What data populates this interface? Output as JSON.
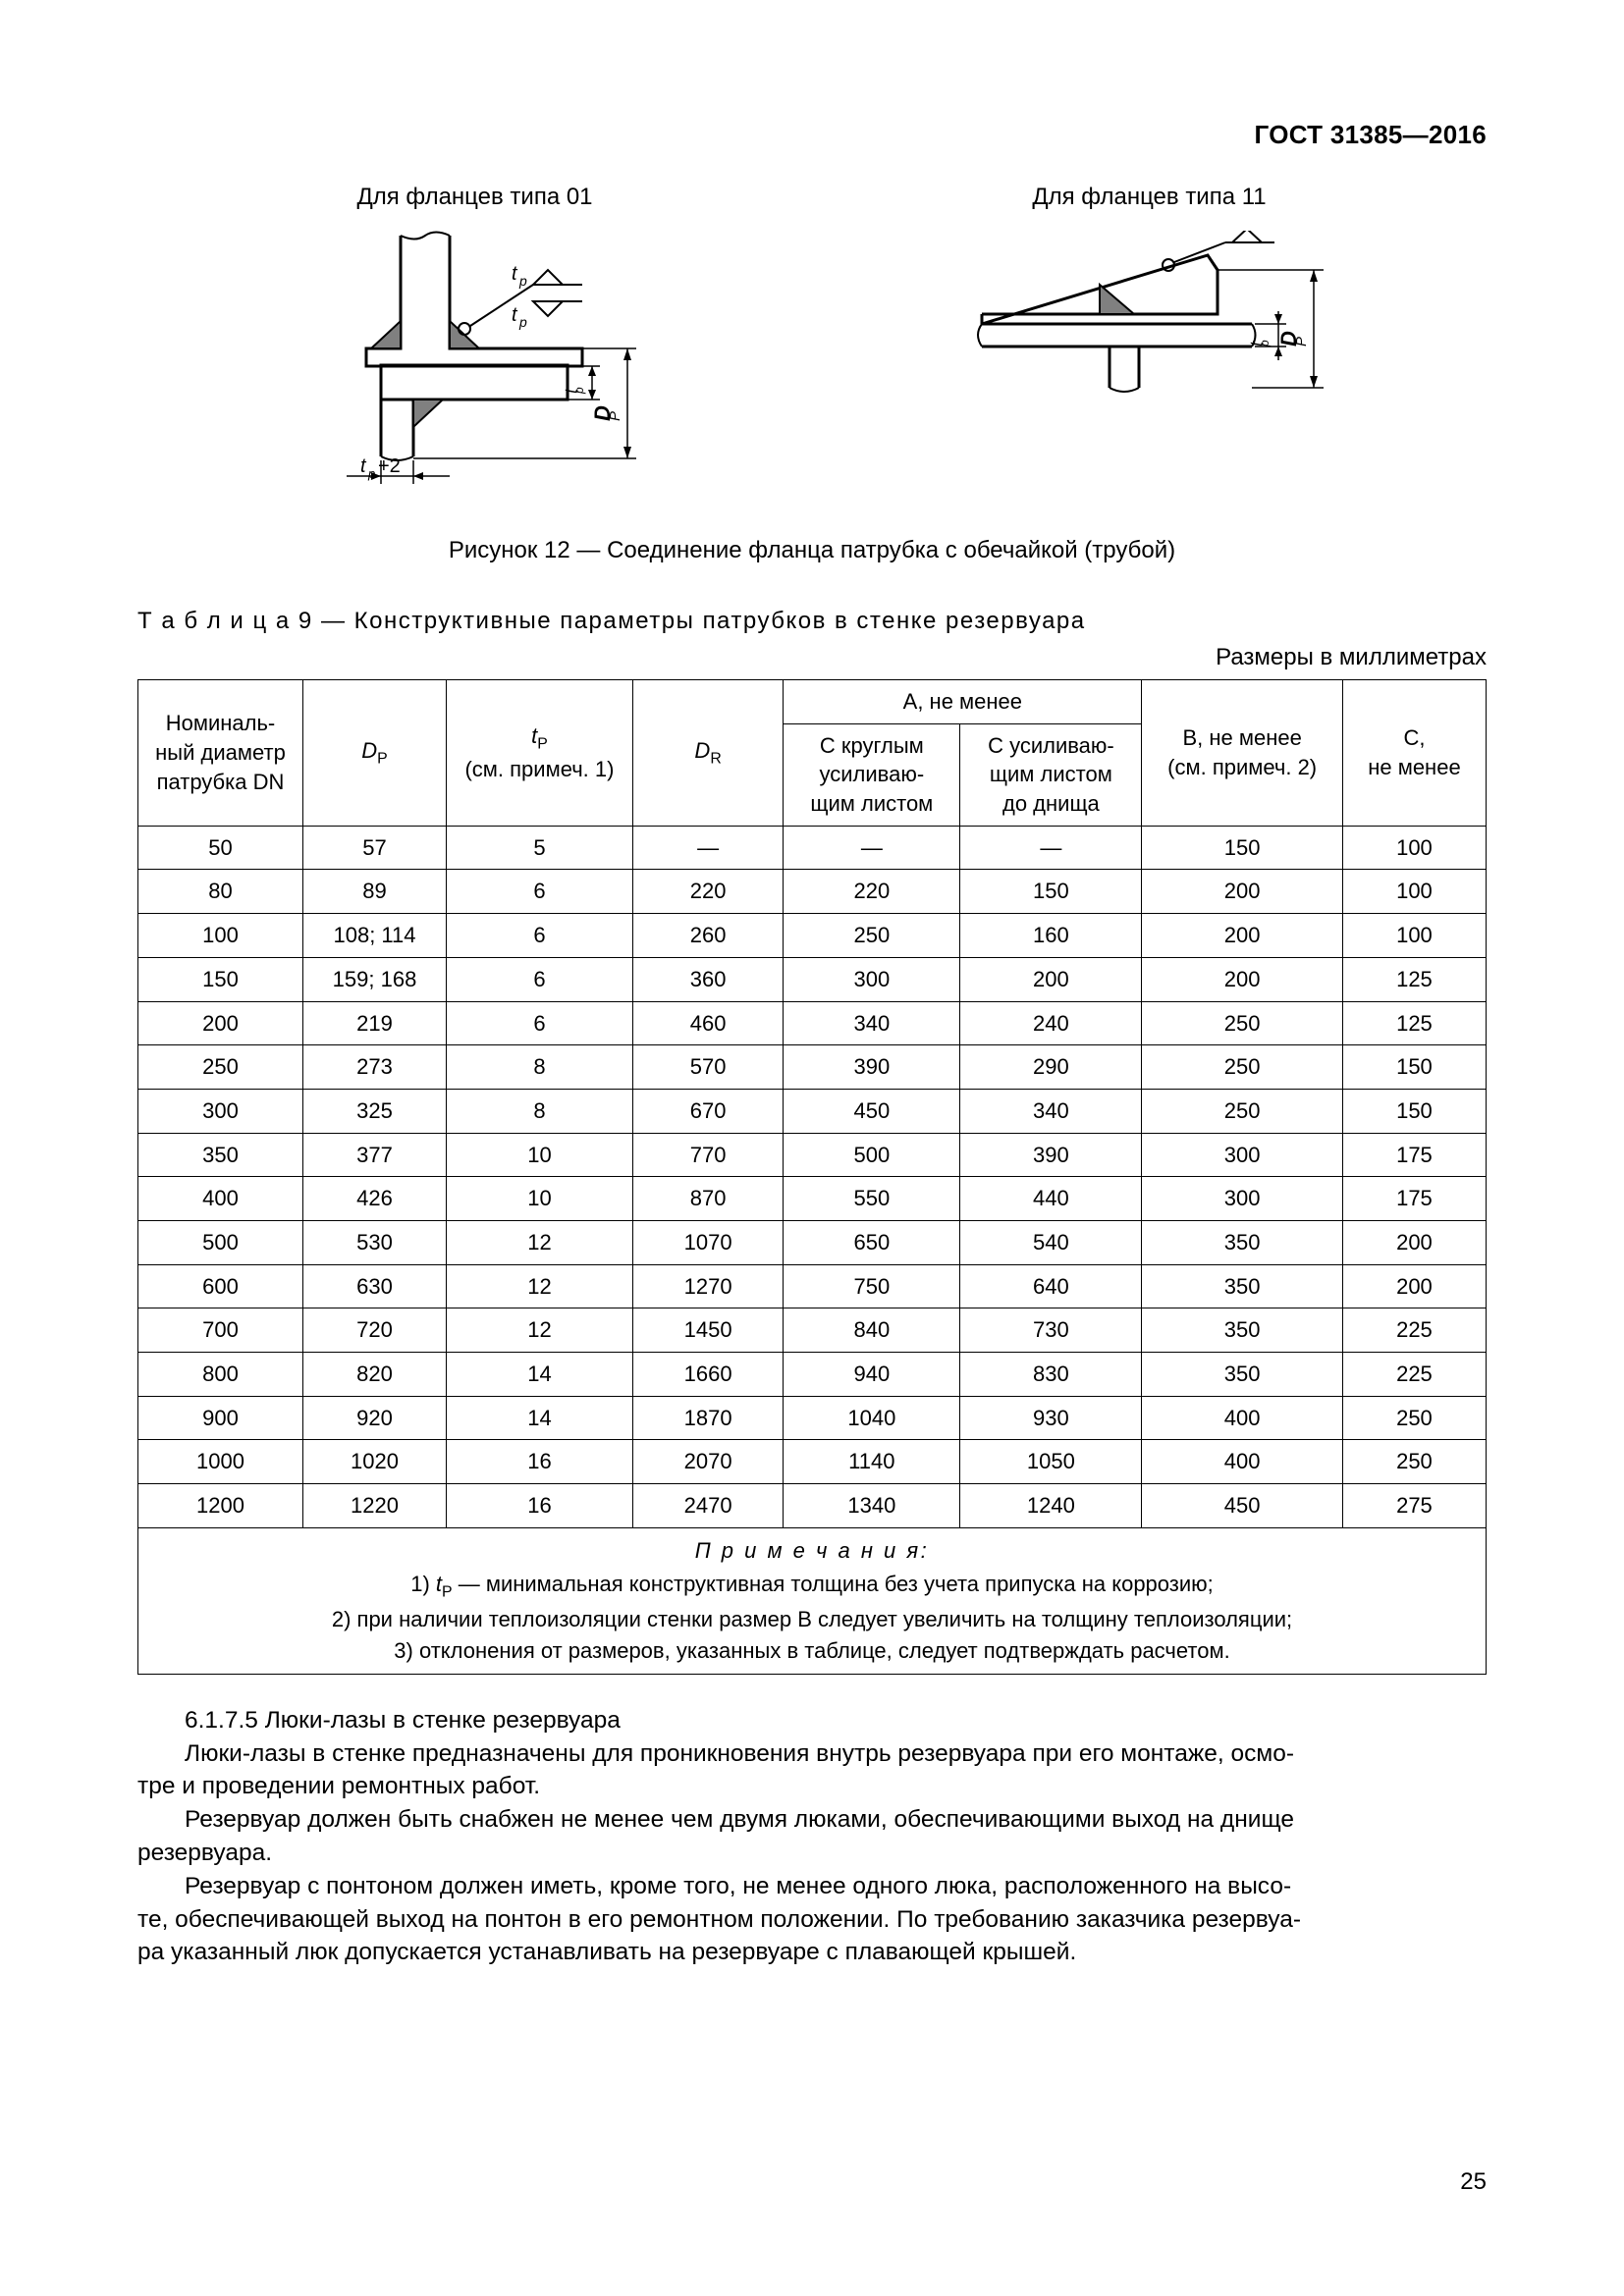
{
  "header": {
    "doc_id": "ГОСТ 31385—2016"
  },
  "figures": {
    "left_title": "Для фланцев типа 01",
    "right_title": "Для фланцев типа 11",
    "caption": "Рисунок 12 — Соединение фланца патрубка с обечайкой (трубой)",
    "labels": {
      "tp": "t",
      "tp_sub": "p",
      "tp_plus2": "t",
      "tp_plus2_sub": "p",
      "tp_plus2_suffix": "+2",
      "dp": "D",
      "dp_sub": "P"
    }
  },
  "table": {
    "title_prefix": "Т а б л и ц а   9 — ",
    "title_rest": "Конструктивные параметры патрубков в стенке резервуара",
    "units": "Размеры в миллиметрах",
    "headers": {
      "dn": "Номиналь-\nный диаметр\nпатрубка DN",
      "dp": "D",
      "dp_sub": "P",
      "tp": "t",
      "tp_sub": "P",
      "tp_note": "(см. примеч. 1)",
      "dr": "D",
      "dr_sub": "R",
      "a": "А, не менее",
      "a1": "С круглым\nусиливаю-\nщим листом",
      "a2": "С усиливаю-\nщим листом\nдо днища",
      "b": "В, не менее\n(см. примеч. 2)",
      "c": "С,\nне менее"
    },
    "rows": [
      [
        "50",
        "57",
        "5",
        "—",
        "—",
        "—",
        "150",
        "100"
      ],
      [
        "80",
        "89",
        "6",
        "220",
        "220",
        "150",
        "200",
        "100"
      ],
      [
        "100",
        "108; 114",
        "6",
        "260",
        "250",
        "160",
        "200",
        "100"
      ],
      [
        "150",
        "159; 168",
        "6",
        "360",
        "300",
        "200",
        "200",
        "125"
      ],
      [
        "200",
        "219",
        "6",
        "460",
        "340",
        "240",
        "250",
        "125"
      ],
      [
        "250",
        "273",
        "8",
        "570",
        "390",
        "290",
        "250",
        "150"
      ],
      [
        "300",
        "325",
        "8",
        "670",
        "450",
        "340",
        "250",
        "150"
      ],
      [
        "350",
        "377",
        "10",
        "770",
        "500",
        "390",
        "300",
        "175"
      ],
      [
        "400",
        "426",
        "10",
        "870",
        "550",
        "440",
        "300",
        "175"
      ],
      [
        "500",
        "530",
        "12",
        "1070",
        "650",
        "540",
        "350",
        "200"
      ],
      [
        "600",
        "630",
        "12",
        "1270",
        "750",
        "640",
        "350",
        "200"
      ],
      [
        "700",
        "720",
        "12",
        "1450",
        "840",
        "730",
        "350",
        "225"
      ],
      [
        "800",
        "820",
        "14",
        "1660",
        "940",
        "830",
        "350",
        "225"
      ],
      [
        "900",
        "920",
        "14",
        "1870",
        "1040",
        "930",
        "400",
        "250"
      ],
      [
        "1000",
        "1020",
        "16",
        "2070",
        "1140",
        "1050",
        "400",
        "250"
      ],
      [
        "1200",
        "1220",
        "16",
        "2470",
        "1340",
        "1240",
        "450",
        "275"
      ]
    ],
    "notes": {
      "heading": "П р и м е ч а н и я:",
      "n1": " — минимальная конструктивная толщина без учета припуска на коррозию;",
      "n2": "2) при наличии теплоизоляции стенки размер В следует увеличить на толщину теплоизоляции;",
      "n3": "3) отклонения от размеров, указанных в таблице, следует подтверждать расчетом."
    }
  },
  "body": {
    "p1": "6.1.7.5 Люки-лазы в стенке резервуара",
    "p2": "Люки-лазы в стенке предназначены для проникновения внутрь резервуара при его монтаже, осмо-",
    "p2b": "тре и проведении ремонтных работ.",
    "p3": "Резервуар должен быть снабжен не менее чем двумя люками, обеспечивающими выход на днище",
    "p3b": "резервуара.",
    "p4": "Резервуар с понтоном должен иметь, кроме того, не менее одного люка, расположенного на высо-",
    "p4b": "те, обеспечивающей выход на понтон в его ремонтном положении. По требованию заказчика резервуа-",
    "p4c": "ра указанный люк допускается устанавливать на резервуаре с плавающей крышей."
  },
  "page": "25"
}
